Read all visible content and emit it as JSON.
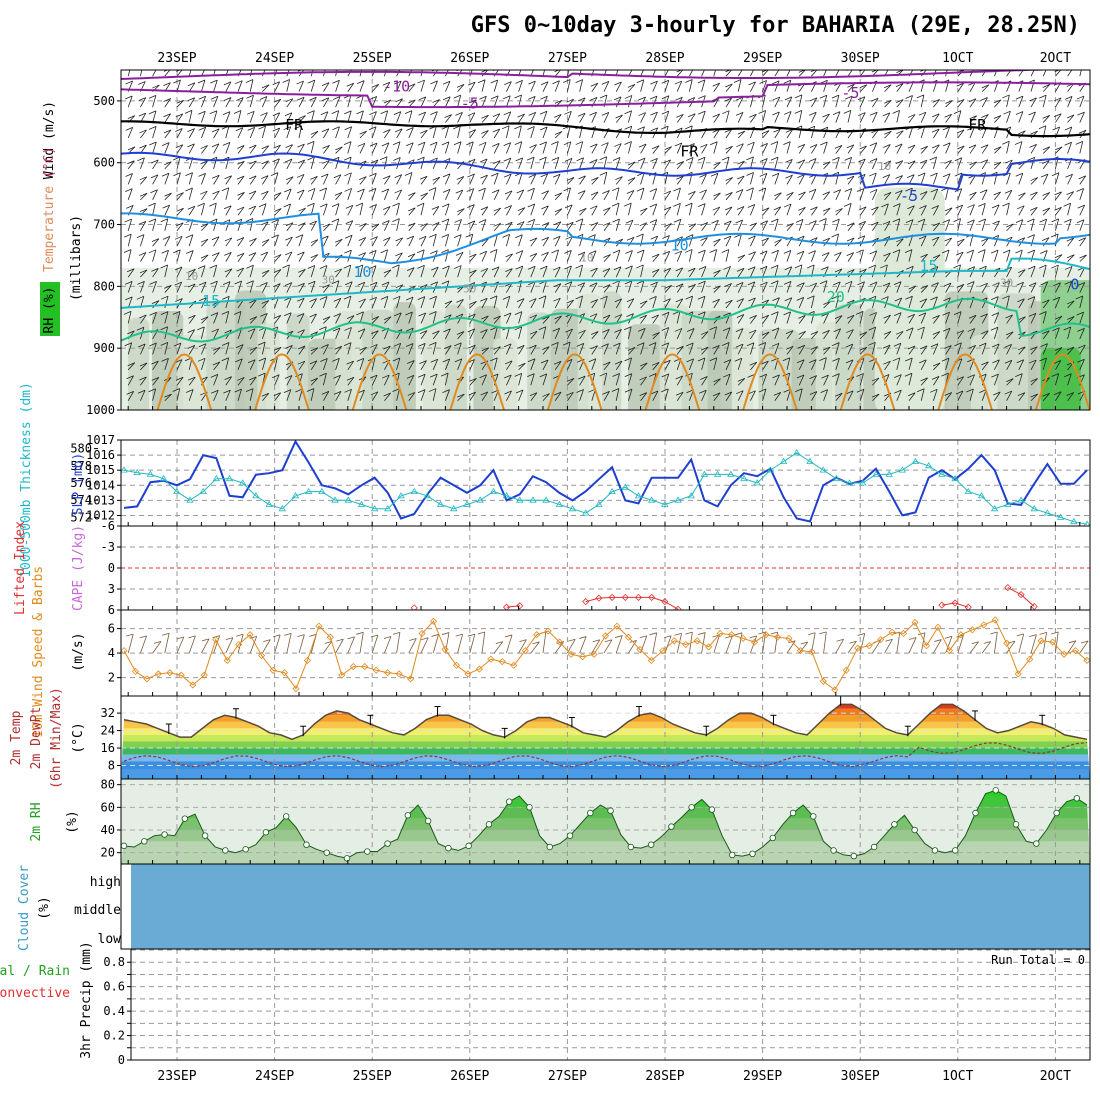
{
  "chart_data": {
    "type": "meteogram",
    "title": "GFS 0~10day 3-hourly for BAHARIA (29E, 28.25N)",
    "dates": [
      "23SEP",
      "24SEP",
      "25SEP",
      "26SEP",
      "27SEP",
      "28SEP",
      "29SEP",
      "30SEP",
      "1OCT",
      "2OCT"
    ],
    "panels": {
      "upper_air": {
        "labels": {
          "wind": "Wind (m/s)",
          "temp": "Temperature (°C)",
          "rh": "RH (%)",
          "unit": "(millibars)"
        },
        "y_ticks": [
          "500",
          "600",
          "700",
          "800",
          "900",
          "1000"
        ],
        "y_range_mb": [
          450,
          1000
        ],
        "contour_labels": [
          {
            "text": "-10",
            "color": "#8a1f9e",
            "day": 2.25,
            "mb": 485
          },
          {
            "text": "-5",
            "color": "#8a1f9e",
            "day": 3.0,
            "mb": 512
          },
          {
            "text": "-5",
            "color": "#8a1f9e",
            "day": 6.9,
            "mb": 495
          },
          {
            "text": "FR",
            "color": "#000000",
            "day": 1.2,
            "mb": 547
          },
          {
            "text": "FR",
            "color": "#000000",
            "day": 5.25,
            "mb": 590
          },
          {
            "text": "FR",
            "color": "#000000",
            "day": 8.2,
            "mb": 547
          },
          {
            "text": "-5",
            "color": "#1f3fd0",
            "day": 7.5,
            "mb": 662
          },
          {
            "text": "10",
            "color": "#1f8fe0",
            "day": 5.15,
            "mb": 742
          },
          {
            "text": "10",
            "color": "#1f8fe0",
            "day": 1.9,
            "mb": 785
          },
          {
            "text": "15",
            "color": "#1fb8c8",
            "day": 7.7,
            "mb": 775
          },
          {
            "text": "15",
            "color": "#1fb8c8",
            "day": 0.35,
            "mb": 832
          },
          {
            "text": "20",
            "color": "#22c08a",
            "day": 6.75,
            "mb": 825
          },
          {
            "text": "0",
            "color": "#1f3fd0",
            "day": 9.2,
            "mb": 805
          },
          {
            "text": "10",
            "color": "#999999",
            "day": 7.25,
            "mb": 612
          },
          {
            "text": "10",
            "color": "#999999",
            "day": 0.15,
            "mb": 790
          },
          {
            "text": "30",
            "color": "#999999",
            "day": 1.55,
            "mb": 795
          },
          {
            "text": "10",
            "color": "#999999",
            "day": 4.2,
            "mb": 760
          },
          {
            "text": "50",
            "color": "#999999",
            "day": 3.0,
            "mb": 810
          },
          {
            "text": "30",
            "color": "#999999",
            "day": 8.5,
            "mb": 800
          }
        ]
      },
      "slp_thickness": {
        "labels": {
          "thickness": "1000-500mb Thickness (dm)",
          "slp": "SLP (mb)"
        },
        "left_ticks": [
          "572",
          "574",
          "576",
          "578",
          "580"
        ],
        "right_ticks": [
          "1012",
          "1013",
          "1014",
          "1015",
          "1016",
          "1017"
        ],
        "slp": [
          1012.5,
          1012.6,
          1014.2,
          1014.3,
          1014.0,
          1014.4,
          1016.0,
          1015.8,
          1013.3,
          1013.2,
          1014.7,
          1014.8,
          1015.0,
          1016.9,
          1015.5,
          1014.0,
          1013.8,
          1013.4,
          1014.0,
          1014.5,
          1013.5,
          1011.8,
          1012.1,
          1013.4,
          1014.5,
          1014.0,
          1013.5,
          1014.0,
          1015.0,
          1013.0,
          1013.4,
          1014.6,
          1014.2,
          1013.5,
          1013.0,
          1013.6,
          1014.4,
          1015.2,
          1013.0,
          1012.8,
          1014.5,
          1014.5,
          1014.5,
          1015.7,
          1013.0,
          1012.6,
          1014.0,
          1014.8,
          1014.6,
          1015.1,
          1013.2,
          1011.8,
          1011.6,
          1014.0,
          1014.5,
          1014.1,
          1014.3,
          1015.1,
          1013.6,
          1012.0,
          1012.2,
          1014.5,
          1015.0,
          1014.4,
          1015.1,
          1016.0,
          1015.0,
          1012.8,
          1012.7,
          1014.1,
          1015.4,
          1014.1,
          1014.1,
          1015.0
        ],
        "thickness": [
          577.5,
          577.2,
          577.0,
          576.5,
          575.0,
          574.0,
          575.0,
          576.5,
          576.5,
          576.0,
          574.5,
          573.5,
          573.0,
          574.5,
          575.0,
          575.0,
          574.0,
          574.0,
          573.5,
          573.0,
          573.0,
          574.5,
          575.0,
          574.5,
          573.5,
          573.0,
          573.5,
          574.0,
          575.0,
          574.5,
          574.0,
          574.0,
          574.0,
          573.5,
          573.0,
          572.5,
          573.5,
          575.0,
          575.5,
          574.5,
          574.0,
          573.5,
          574.0,
          574.5,
          577.0,
          577.0,
          577.0,
          576.5,
          576.0,
          577.5,
          578.5,
          579.5,
          578.5,
          577.5,
          576.5,
          576.0,
          576.0,
          577.0,
          577.0,
          577.5,
          578.5,
          578.0,
          577.0,
          576.5,
          575.0,
          574.5,
          573.0,
          573.5,
          574.0,
          573.0,
          572.5,
          572.0,
          571.5,
          571.2
        ]
      },
      "stability": {
        "labels": {
          "li": "Lifted Index",
          "cape": "CAPE (J/kg)"
        },
        "y_ticks": [
          "-6",
          "-3",
          "0",
          "3",
          "6"
        ],
        "li": [
          null,
          null,
          null,
          null,
          null,
          null,
          null,
          null,
          null,
          null,
          null,
          null,
          null,
          null,
          null,
          null,
          null,
          null,
          null,
          null,
          null,
          null,
          5.7,
          null,
          null,
          null,
          null,
          null,
          null,
          5.6,
          5.4,
          null,
          null,
          null,
          null,
          4.8,
          4.3,
          4.2,
          4.2,
          4.2,
          4.2,
          4.8,
          5.9,
          null,
          null,
          null,
          null,
          null,
          null,
          null,
          null,
          null,
          null,
          null,
          null,
          null,
          null,
          null,
          null,
          null,
          null,
          null,
          5.3,
          5.0,
          5.6,
          null,
          null,
          2.8,
          3.8,
          5.5,
          null,
          null,
          null,
          null
        ]
      },
      "wind10m": {
        "labels": {
          "main": "10m Wind Speed & Barbs",
          "unit": "(m/s)"
        },
        "y_ticks": [
          "2",
          "4",
          "6"
        ],
        "speed": [
          4.2,
          2.5,
          1.9,
          2.3,
          2.4,
          2.2,
          1.4,
          2.2,
          5.1,
          3.4,
          4.7,
          5.5,
          3.8,
          2.6,
          2.4,
          1.1,
          3.4,
          6.2,
          5.3,
          2.2,
          2.9,
          2.9,
          2.6,
          2.4,
          2.3,
          1.9,
          5.6,
          6.6,
          4.3,
          3.0,
          2.3,
          2.7,
          3.5,
          3.3,
          3.0,
          4.2,
          5.5,
          5.8,
          4.9,
          3.9,
          3.7,
          3.9,
          5.4,
          6.2,
          5.3,
          4.3,
          3.4,
          4.2,
          5.0,
          4.7,
          5.0,
          4.5,
          5.6,
          5.5,
          5.2,
          4.9,
          5.5,
          5.3,
          5.2,
          4.2,
          4.1,
          1.7,
          1.0,
          2.6,
          4.4,
          4.6,
          5.1,
          5.7,
          5.6,
          6.5,
          4.6,
          6.1,
          4.2,
          5.5,
          5.9,
          6.3,
          6.7,
          4.8,
          2.3,
          3.5,
          5.0,
          4.9,
          3.9,
          4.2,
          3.4
        ]
      },
      "temp2m": {
        "labels": {
          "temp": "2m Temp",
          "dew": "2m DewPt",
          "minmax": "(6hr Min/Max)",
          "unit": "(°C)"
        },
        "y_ticks": [
          "8",
          "16",
          "24",
          "32"
        ],
        "temp": [
          29,
          28,
          27,
          25,
          23,
          21,
          21,
          25,
          29,
          31,
          30,
          28,
          26,
          23,
          22,
          20,
          22,
          27,
          31,
          33,
          32,
          29,
          27,
          25,
          23,
          22,
          25,
          29,
          31,
          31,
          29,
          27,
          24,
          22,
          21,
          24,
          28,
          30,
          30,
          28,
          26,
          23,
          22,
          21,
          24,
          28,
          31,
          32,
          30,
          27,
          25,
          23,
          22,
          25,
          29,
          32,
          32,
          30,
          27,
          25,
          23,
          22,
          27,
          32,
          36,
          36,
          33,
          29,
          25,
          23,
          22,
          27,
          32,
          36,
          36,
          33,
          29,
          25,
          23,
          24,
          26,
          28,
          27,
          25,
          22,
          21,
          20
        ]
      },
      "rh2m": {
        "labels": {
          "main": "2m RH",
          "unit": "(%)"
        },
        "y_ticks": [
          "20",
          "40",
          "60",
          "80"
        ],
        "rh": [
          26,
          25,
          30,
          35,
          36,
          35,
          50,
          54,
          35,
          25,
          22,
          20,
          23,
          27,
          38,
          42,
          52,
          42,
          27,
          23,
          20,
          17,
          15,
          20,
          21,
          21,
          28,
          32,
          53,
          62,
          48,
          28,
          24,
          22,
          26,
          35,
          45,
          52,
          65,
          70,
          60,
          35,
          25,
          28,
          35,
          45,
          55,
          62,
          57,
          36,
          25,
          24,
          27,
          34,
          43,
          51,
          60,
          67,
          58,
          35,
          18,
          17,
          19,
          25,
          33,
          45,
          55,
          62,
          52,
          30,
          22,
          18,
          17,
          19,
          25,
          35,
          45,
          53,
          40,
          28,
          22,
          20,
          22,
          35,
          55,
          72,
          75,
          70,
          45,
          30,
          28,
          40,
          55,
          65,
          68,
          62
        ]
      },
      "cloud": {
        "labels": {
          "main": "Cloud Cover",
          "unit": "(%)"
        },
        "levels": [
          "high",
          "middle",
          "low"
        ],
        "color": "#6aabd5"
      },
      "precip": {
        "labels": {
          "main": "3hr Precip (mm)",
          "total": "Total / Rain",
          "conv": "Convective"
        },
        "y_ticks": [
          "0",
          "0.2",
          "0.4",
          "0.6",
          "0.8"
        ],
        "run_total": "Run Total = 0"
      }
    }
  }
}
